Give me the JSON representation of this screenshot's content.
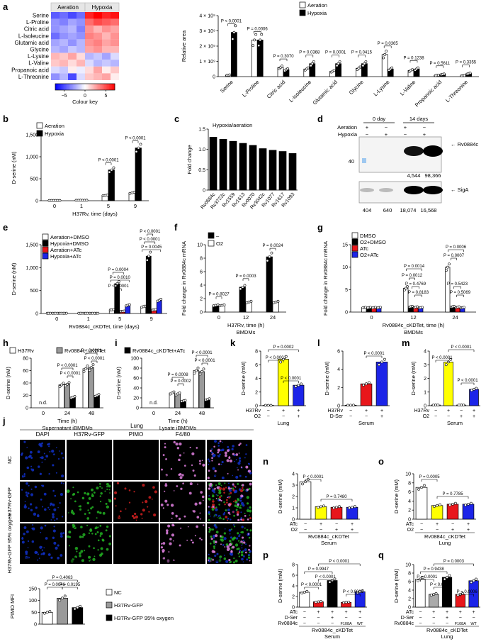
{
  "colors": {
    "aeration": "#ffffff",
    "hypoxia": "#000000",
    "aeration_atc": "#e8161b",
    "hypoxia_atc": "#1c24e8",
    "h37rv": "#ffffff",
    "cktet": "#9a9a9a",
    "cktet_atc": "#000000",
    "yellow": "#ffff00",
    "red": "#e8161b",
    "blue": "#1c24e8",
    "microscopy_dapi": "#1030c8",
    "microscopy_gfp": "#22b022",
    "microscopy_pimo": "#d02020",
    "microscopy_f480": "#e080e0"
  },
  "chart_data": [
    {
      "panel": "a",
      "type": "heatmap",
      "title": "",
      "column_groups": [
        "Aeration",
        "Hypoxia"
      ],
      "columns_per_group": 4,
      "rows": [
        "Serine",
        "L-Proline",
        "Citric acid",
        "L-Isoleucine",
        "Glutamic acid",
        "Glycine",
        "L-Lysine",
        "L-Valine",
        "Propanoic acid",
        "L-Threonine"
      ],
      "values": [
        [
          -4.5,
          -4,
          -5,
          -4,
          6,
          7,
          6,
          6.5
        ],
        [
          -3,
          -3.5,
          -2.5,
          -3,
          4,
          5,
          4.5,
          4
        ],
        [
          -3,
          -2.5,
          -2,
          -3.5,
          3,
          2,
          3,
          2.5
        ],
        [
          -4,
          -3,
          -2.5,
          -3,
          3.5,
          3,
          2,
          3
        ],
        [
          -2.5,
          -2,
          -3,
          -2,
          3,
          3.5,
          2.5,
          3
        ],
        [
          -2,
          -2.5,
          -1.5,
          -2,
          2.5,
          3,
          2,
          2
        ],
        [
          2,
          1.5,
          2.5,
          1,
          -2,
          -1.5,
          -2.5,
          -1
        ],
        [
          1.5,
          2,
          1,
          2,
          -1,
          -2,
          -1.5,
          -2
        ],
        [
          -1,
          -1.5,
          0.5,
          -0.5,
          1,
          2.5,
          0.5,
          1.5
        ],
        [
          -3,
          -2,
          -5,
          -1,
          1.5,
          2,
          2.5,
          0.5
        ]
      ],
      "color_key": {
        "label": "Colour key",
        "ticks": [
          "−5",
          "0",
          "5"
        ],
        "range": [
          -7,
          7
        ]
      }
    },
    {
      "panel": "a-right",
      "type": "bar",
      "ylabel": "Relative area",
      "categories": [
        "Serine",
        "L-Proline",
        "Citric acid",
        "L-Isoleucine",
        "Glutamic acid",
        "Glycine",
        "L-Lysine",
        "L-Valine",
        "Propanoic acid",
        "L-Threonine"
      ],
      "series": [
        {
          "name": "Aeration",
          "values": [
            0.1,
            2.4,
            0.6,
            0.5,
            0.35,
            0.55,
            1.45,
            0.4,
            0.08,
            0.06
          ]
        },
        {
          "name": "Hypoxia",
          "values": [
            2.9,
            2.4,
            0.45,
            0.85,
            0.85,
            0.85,
            0.5,
            0.5,
            0.15,
            0.2
          ]
        }
      ],
      "ylim": [
        0,
        4
      ],
      "yticks": [
        "0",
        "1 × 10⁹",
        "2 × 10⁹",
        "3 × 10⁹",
        "4 × 10⁹"
      ],
      "pvalues": [
        "P < 0.0001",
        "P = 0.0006",
        "P = 0.3070",
        "P = 0.0368",
        "P = 0.0001",
        "P = 0.0415",
        "P = 0.0365",
        "P = 0.1238",
        "P = 0.5611",
        "P = 0.3355"
      ]
    },
    {
      "panel": "b",
      "type": "bar",
      "ylabel": "D-serine (nM)",
      "xlabel": "H37Rv, time (days)",
      "categories": [
        "0",
        "1",
        "5",
        "9"
      ],
      "series": [
        {
          "name": "Aeration",
          "values": [
            5,
            10,
            120,
            180
          ]
        },
        {
          "name": "Hypoxia",
          "values": [
            5,
            10,
            700,
            1200
          ]
        }
      ],
      "ylim": [
        0,
        1500
      ],
      "yticks": [
        "0",
        "500",
        "1,000",
        "1,500"
      ],
      "pvalues": [
        "P < 0.0001",
        "P < 0.0001"
      ]
    },
    {
      "panel": "c",
      "type": "bar",
      "ylabel": "Fold change",
      "title": "Hypoxia/aeration",
      "categories": [
        "Rv0884c",
        "Rv3722c",
        "Rv1559",
        "Rv1613",
        "Rv0070",
        "Rv3042c",
        "Rv1077",
        "Rv1617",
        "Rv1093"
      ],
      "values": [
        1.3,
        1.25,
        1.2,
        1.15,
        1.1,
        1.02,
        0.98,
        0.95,
        0.9
      ],
      "ylim": [
        0,
        1.5
      ],
      "yticks": [
        "0",
        "0.5",
        "1.0",
        "1.5"
      ]
    },
    {
      "panel": "d",
      "type": "table",
      "header_groups": [
        "0 day",
        "14 days"
      ],
      "rows": [
        {
          "label": "Aeration",
          "signs": [
            "+",
            "−",
            "+",
            "−"
          ]
        },
        {
          "label": "Hypoxia",
          "signs": [
            "−",
            "+",
            "−",
            "+"
          ]
        }
      ],
      "blot_labels": [
        "Rv0884c",
        "SigA"
      ],
      "mw_markers": [
        "40"
      ],
      "quant_rv0884c": [
        "4,544",
        "98,366"
      ],
      "quant_siga": [
        "404",
        "640",
        "18,074",
        "16,568"
      ]
    },
    {
      "panel": "e",
      "type": "bar",
      "ylabel": "D-serine (nM)",
      "xlabel": "Rv0884c_cKDTet, time (days)",
      "categories": [
        "0",
        "1",
        "5",
        "9"
      ],
      "series": [
        {
          "name": "Aeration+DMSO",
          "values": [
            5,
            5,
            80,
            150
          ]
        },
        {
          "name": "Hypoxia+DMSO",
          "values": [
            5,
            5,
            650,
            1250
          ]
        },
        {
          "name": "Aeration+ATc",
          "values": [
            5,
            5,
            50,
            80
          ]
        },
        {
          "name": "Hypoxia+ATc",
          "values": [
            5,
            5,
            180,
            290
          ]
        }
      ],
      "ylim": [
        0,
        1500
      ],
      "yticks": [
        "0",
        "500",
        "1,000",
        "1,500"
      ],
      "pvalues": [
        "P = 0.0004",
        "P = 0.0010",
        "P < 0.0001",
        "P < 0.0001",
        "P = 0.0045",
        "P < 0.0001"
      ]
    },
    {
      "panel": "f",
      "type": "bar",
      "ylabel": "Fold change in Rv0884c mRNA",
      "xlabel": "H37Rv, time (h)",
      "subxlabel": "BMDMs",
      "categories": [
        "0",
        "12",
        "24"
      ],
      "series": [
        {
          "name": "–",
          "values": [
            1,
            3.7,
            8.2
          ]
        },
        {
          "name": "O2",
          "values": [
            1,
            1.5,
            1.5
          ]
        }
      ],
      "ylim": [
        0,
        10
      ],
      "yticks": [
        "0",
        "2",
        "4",
        "6",
        "8",
        "10"
      ],
      "pvalues": [
        "P = 0.8027",
        "P = 0.0003",
        "P = 0.0024"
      ]
    },
    {
      "panel": "g",
      "type": "bar",
      "ylabel": "Fold change in Rv0884c mRNA",
      "xlabel": "Rv0884c_cKDTet, time (h)",
      "subxlabel": "BMDMs",
      "categories": [
        "0",
        "12",
        "24"
      ],
      "series": [
        {
          "name": "DMSO",
          "values": [
            1,
            5.3,
            10
          ]
        },
        {
          "name": "O2+DMSO",
          "values": [
            1,
            1.2,
            1.2
          ]
        },
        {
          "name": "ATc",
          "values": [
            1,
            1.1,
            1.1
          ]
        },
        {
          "name": "O2+ATc",
          "values": [
            1,
            1.0,
            1.0
          ]
        }
      ],
      "ylim": [
        0,
        15
      ],
      "yticks": [
        "0",
        "5",
        "10",
        "15"
      ],
      "pvalues": [
        "P = 0.0006",
        "P = 0.0014",
        "P = 0.0007",
        "P = 0.0012",
        "P = 0.4769",
        "P = 0.8183",
        "P = 0.5423",
        "P = 0.5069"
      ]
    },
    {
      "panel": "h",
      "type": "bar",
      "ylabel": "D-serine (nM)",
      "xlabel": "Time (h)",
      "subxlabel": "Supernatant iBMDMs",
      "categories": [
        "0",
        "24",
        "48"
      ],
      "series": [
        {
          "name": "H37Rv",
          "values": [
            0,
            37,
            63
          ]
        },
        {
          "name": "Rv0884c_cKDTet",
          "values": [
            0,
            38,
            65
          ]
        },
        {
          "name": "Rv0884c_cKDTet+ATc",
          "values": [
            0,
            17,
            20
          ]
        }
      ],
      "ylim": [
        0,
        80
      ],
      "yticks": [
        "0",
        "20",
        "40",
        "60",
        "80"
      ],
      "na_label": "n.d.",
      "pvalues": [
        "P < 0.0001",
        "P < 0.0001",
        "P < 0.0001",
        "P < 0.0001"
      ]
    },
    {
      "panel": "i",
      "type": "bar",
      "ylabel": "D-serine (nM)",
      "xlabel": "Time (h)",
      "subxlabel": "Lysate iBMDMs",
      "categories": [
        "0",
        "24",
        "48"
      ],
      "series": [
        {
          "name": "H37Rv",
          "values": [
            0,
            30,
            75
          ]
        },
        {
          "name": "Rv0884c_cKDTet",
          "values": [
            0,
            28,
            73
          ]
        },
        {
          "name": "Rv0884c_cKDTet+ATc",
          "values": [
            0,
            14,
            17
          ]
        }
      ],
      "ylim": [
        0,
        100
      ],
      "yticks": [
        "0",
        "20",
        "40",
        "60",
        "80",
        "100"
      ],
      "na_label": "n.d.",
      "pvalues": [
        "P < 0.0001",
        "P = 0.0008",
        "P = 0.0002",
        "P < 0.0001"
      ]
    },
    {
      "panel": "k",
      "type": "bar",
      "ylabel": "D-serine (mM)",
      "xlabel": "Lung",
      "categories": [
        "1",
        "2",
        "3"
      ],
      "values": [
        0.05,
        6.8,
        3.0
      ],
      "ylim": [
        0,
        8
      ],
      "yticks": [
        "0",
        "2",
        "4",
        "6",
        "8"
      ],
      "conditions": [
        {
          "label": "H37Rv",
          "signs": [
            "−",
            "+",
            "+"
          ]
        },
        {
          "label": "O2",
          "signs": [
            "−",
            "−",
            "+"
          ]
        }
      ],
      "pvalues": [
        "P < 0.0001",
        "P = 0.0002",
        "P < 0.0001"
      ]
    },
    {
      "panel": "l",
      "type": "bar",
      "ylabel": "D-serine (mM)",
      "xlabel": "Serum",
      "categories": [
        "1",
        "2",
        "3"
      ],
      "values": [
        0.05,
        2.4,
        4.8
      ],
      "ylim": [
        0,
        6
      ],
      "yticks": [
        "0",
        "2",
        "4",
        "6"
      ],
      "conditions": [
        {
          "label": "H37Rv",
          "signs": [
            "−",
            "+",
            "+"
          ]
        },
        {
          "label": "D-Ser",
          "signs": [
            "−",
            "−",
            "+"
          ]
        }
      ],
      "pvalues": [
        "P < 0.0001"
      ]
    },
    {
      "panel": "m",
      "type": "bar",
      "ylabel": "D-serine (mM)",
      "xlabel": "Serum",
      "categories": [
        "1",
        "2",
        "3",
        "4"
      ],
      "values": [
        0.05,
        3.2,
        0.05,
        1.2
      ],
      "ylim": [
        0,
        4
      ],
      "yticks": [
        "0",
        "1",
        "2",
        "3",
        "4"
      ],
      "conditions": [
        {
          "label": "H37Rv",
          "signs": [
            "−",
            "+",
            "−",
            "+"
          ]
        },
        {
          "label": "O2",
          "signs": [
            "−",
            "−",
            "+",
            "+"
          ]
        }
      ],
      "pvalues": [
        "P < 0.0001",
        "P < 0.0001",
        "P < 0.0001"
      ]
    },
    {
      "panel": "j",
      "type": "bar",
      "ylabel": "PIMO MFI",
      "categories": [
        "NC",
        "H37Rv-GFP",
        "H37Rv-GFP 95% oxygen"
      ],
      "values": [
        50,
        110,
        70
      ],
      "ylim": [
        0,
        150
      ],
      "yticks": [
        "0",
        "50",
        "100",
        "150"
      ],
      "pvalues": [
        "P = 0.4063",
        "P = 0.0046",
        "P = 0.0195"
      ]
    },
    {
      "panel": "n",
      "type": "bar",
      "ylabel": "D-serine (mM)",
      "xlabel": "Rv0884c_cKDTet",
      "subxlabel": "Serum",
      "values": [
        3.3,
        1.1,
        1.05,
        1.05
      ],
      "ylim": [
        0,
        4
      ],
      "yticks": [
        "0",
        "1",
        "2",
        "3",
        "4"
      ],
      "conditions": [
        {
          "label": "ATc",
          "signs": [
            "−",
            "+",
            "−",
            "+"
          ]
        },
        {
          "label": "O2",
          "signs": [
            "−",
            "−",
            "+",
            "+"
          ]
        }
      ],
      "pvalues": [
        "P < 0.0001",
        "P = 0.7480"
      ]
    },
    {
      "panel": "o",
      "type": "bar",
      "ylabel": "D-serine (mM)",
      "xlabel": "Rv0884c_cKDTet",
      "subxlabel": "Lung",
      "values": [
        7,
        3,
        3.3,
        3.3
      ],
      "ylim": [
        0,
        10
      ],
      "yticks": [
        "0",
        "2",
        "4",
        "6",
        "8",
        "10"
      ],
      "conditions": [
        {
          "label": "ATc",
          "signs": [
            "−",
            "+",
            "−",
            "+"
          ]
        },
        {
          "label": "O2",
          "signs": [
            "−",
            "−",
            "+",
            "+"
          ]
        }
      ],
      "pvalues": [
        "P = 0.0005",
        "P = 0.7785"
      ]
    },
    {
      "panel": "p",
      "type": "bar",
      "ylabel": "D-serine (mM)",
      "xlabel": "Rv0884c_cKDTet",
      "subxlabel": "Serum",
      "values": [
        2.8,
        1.0,
        5.0,
        0.9,
        2.9
      ],
      "ylim": [
        0,
        8
      ],
      "yticks": [
        "0",
        "2",
        "4",
        "6",
        "8"
      ],
      "conditions": [
        {
          "label": "ATc",
          "signs": [
            "−",
            "+",
            "+",
            "+",
            "+"
          ]
        },
        {
          "label": "D-Ser",
          "signs": [
            "−",
            "−",
            "+",
            "−",
            "−"
          ]
        },
        {
          "label": "Rv0884c",
          "signs": [
            "−",
            "−",
            "−",
            "F108A",
            "WT"
          ]
        }
      ],
      "pvalues": [
        "P < 0.0001",
        "P = 0.9947",
        "P < 0.0001",
        "P < 0.0001",
        "P < 0.0001"
      ]
    },
    {
      "panel": "q",
      "type": "bar",
      "ylabel": "D-serine (mM)",
      "xlabel": "Rv0884c_cKDTet",
      "subxlabel": "Lung",
      "values": [
        6.6,
        3.0,
        7.0,
        3.0,
        6.2
      ],
      "ylim": [
        0,
        10
      ],
      "yticks": [
        "0",
        "2",
        "4",
        "6",
        "8",
        "10"
      ],
      "conditions": [
        {
          "label": "ATc",
          "signs": [
            "−",
            "+",
            "+",
            "+",
            "+"
          ]
        },
        {
          "label": "D-Ser",
          "signs": [
            "−",
            "−",
            "+",
            "−",
            "−"
          ]
        },
        {
          "label": "Rv0884c",
          "signs": [
            "−",
            "−",
            "−",
            "F108A",
            "WT"
          ]
        }
      ],
      "pvalues": [
        "P = 0.0001",
        "P = 0.9438",
        "P < 0.0001",
        "P = 0.0003",
        "P = 0.0006"
      ]
    }
  ],
  "microscopy": {
    "section": "Lung",
    "columns": [
      "DAPI",
      "H37Rv-GFP",
      "PIMO",
      "F4/80"
    ],
    "rows": [
      "NC",
      "H37Rv-GFP",
      "H37Rv-GFP 95% oxygen"
    ],
    "scale_bar": "100 μm"
  },
  "legends": {
    "a": [
      "Aeration",
      "Hypoxia"
    ],
    "b": [
      "Aeration",
      "Hypoxia"
    ],
    "e": [
      "Aeration+DMSO",
      "Hypoxia+DMSO",
      "Aeration+ATc",
      "Hypoxia+ATc"
    ],
    "f": [
      "–",
      "O2"
    ],
    "g": [
      "DMSO",
      "O2+DMSO",
      "ATc",
      "O2+ATc"
    ],
    "h": [
      "H37Rv",
      "Rv0884c_cKDTet"
    ],
    "i": [
      "Rv0884c_cKDTet+ATc"
    ],
    "j": [
      "NC",
      "H37Rv-GFP",
      "H37Rv-GFP 95% oxygen"
    ]
  },
  "panel_letters": [
    "a",
    "b",
    "c",
    "d",
    "e",
    "f",
    "g",
    "h",
    "i",
    "j",
    "k",
    "l",
    "m",
    "n",
    "o",
    "p",
    "q"
  ]
}
